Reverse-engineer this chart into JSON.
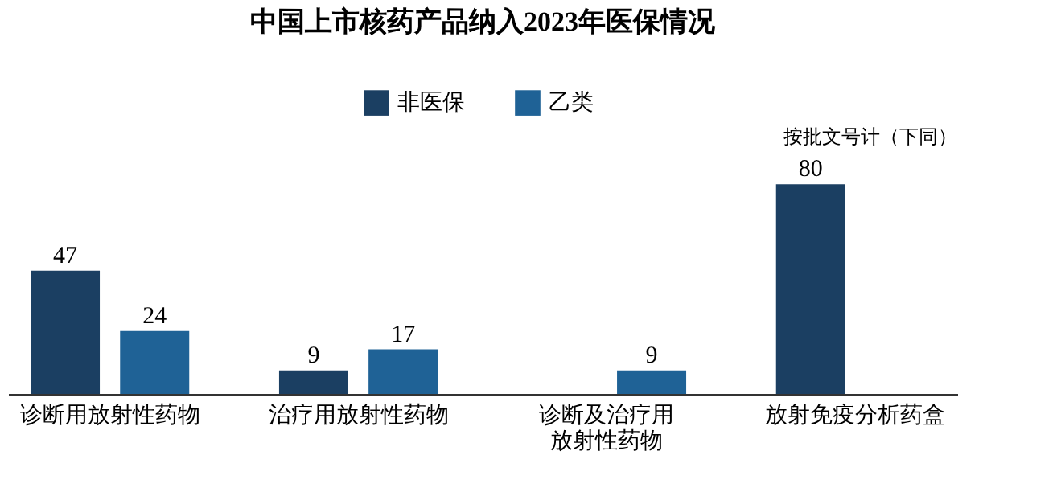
{
  "chart_data": {
    "type": "bar",
    "title": "中国上市核药产品纳入2023年医保情况",
    "categories": [
      "诊断用放射性药物",
      "治疗用放射性药物",
      "诊断及治疗用放射性药物",
      "放射免疫分析药盒"
    ],
    "series": [
      {
        "name": "非医保",
        "color": "#1b3f62",
        "values": [
          47,
          9,
          null,
          80
        ]
      },
      {
        "name": "乙类",
        "color": "#1f6296",
        "values": [
          24,
          17,
          9,
          null
        ]
      }
    ],
    "data_labels": true,
    "legend": "top",
    "grid": false,
    "annotations": [
      "按批文号计（下同）"
    ]
  }
}
